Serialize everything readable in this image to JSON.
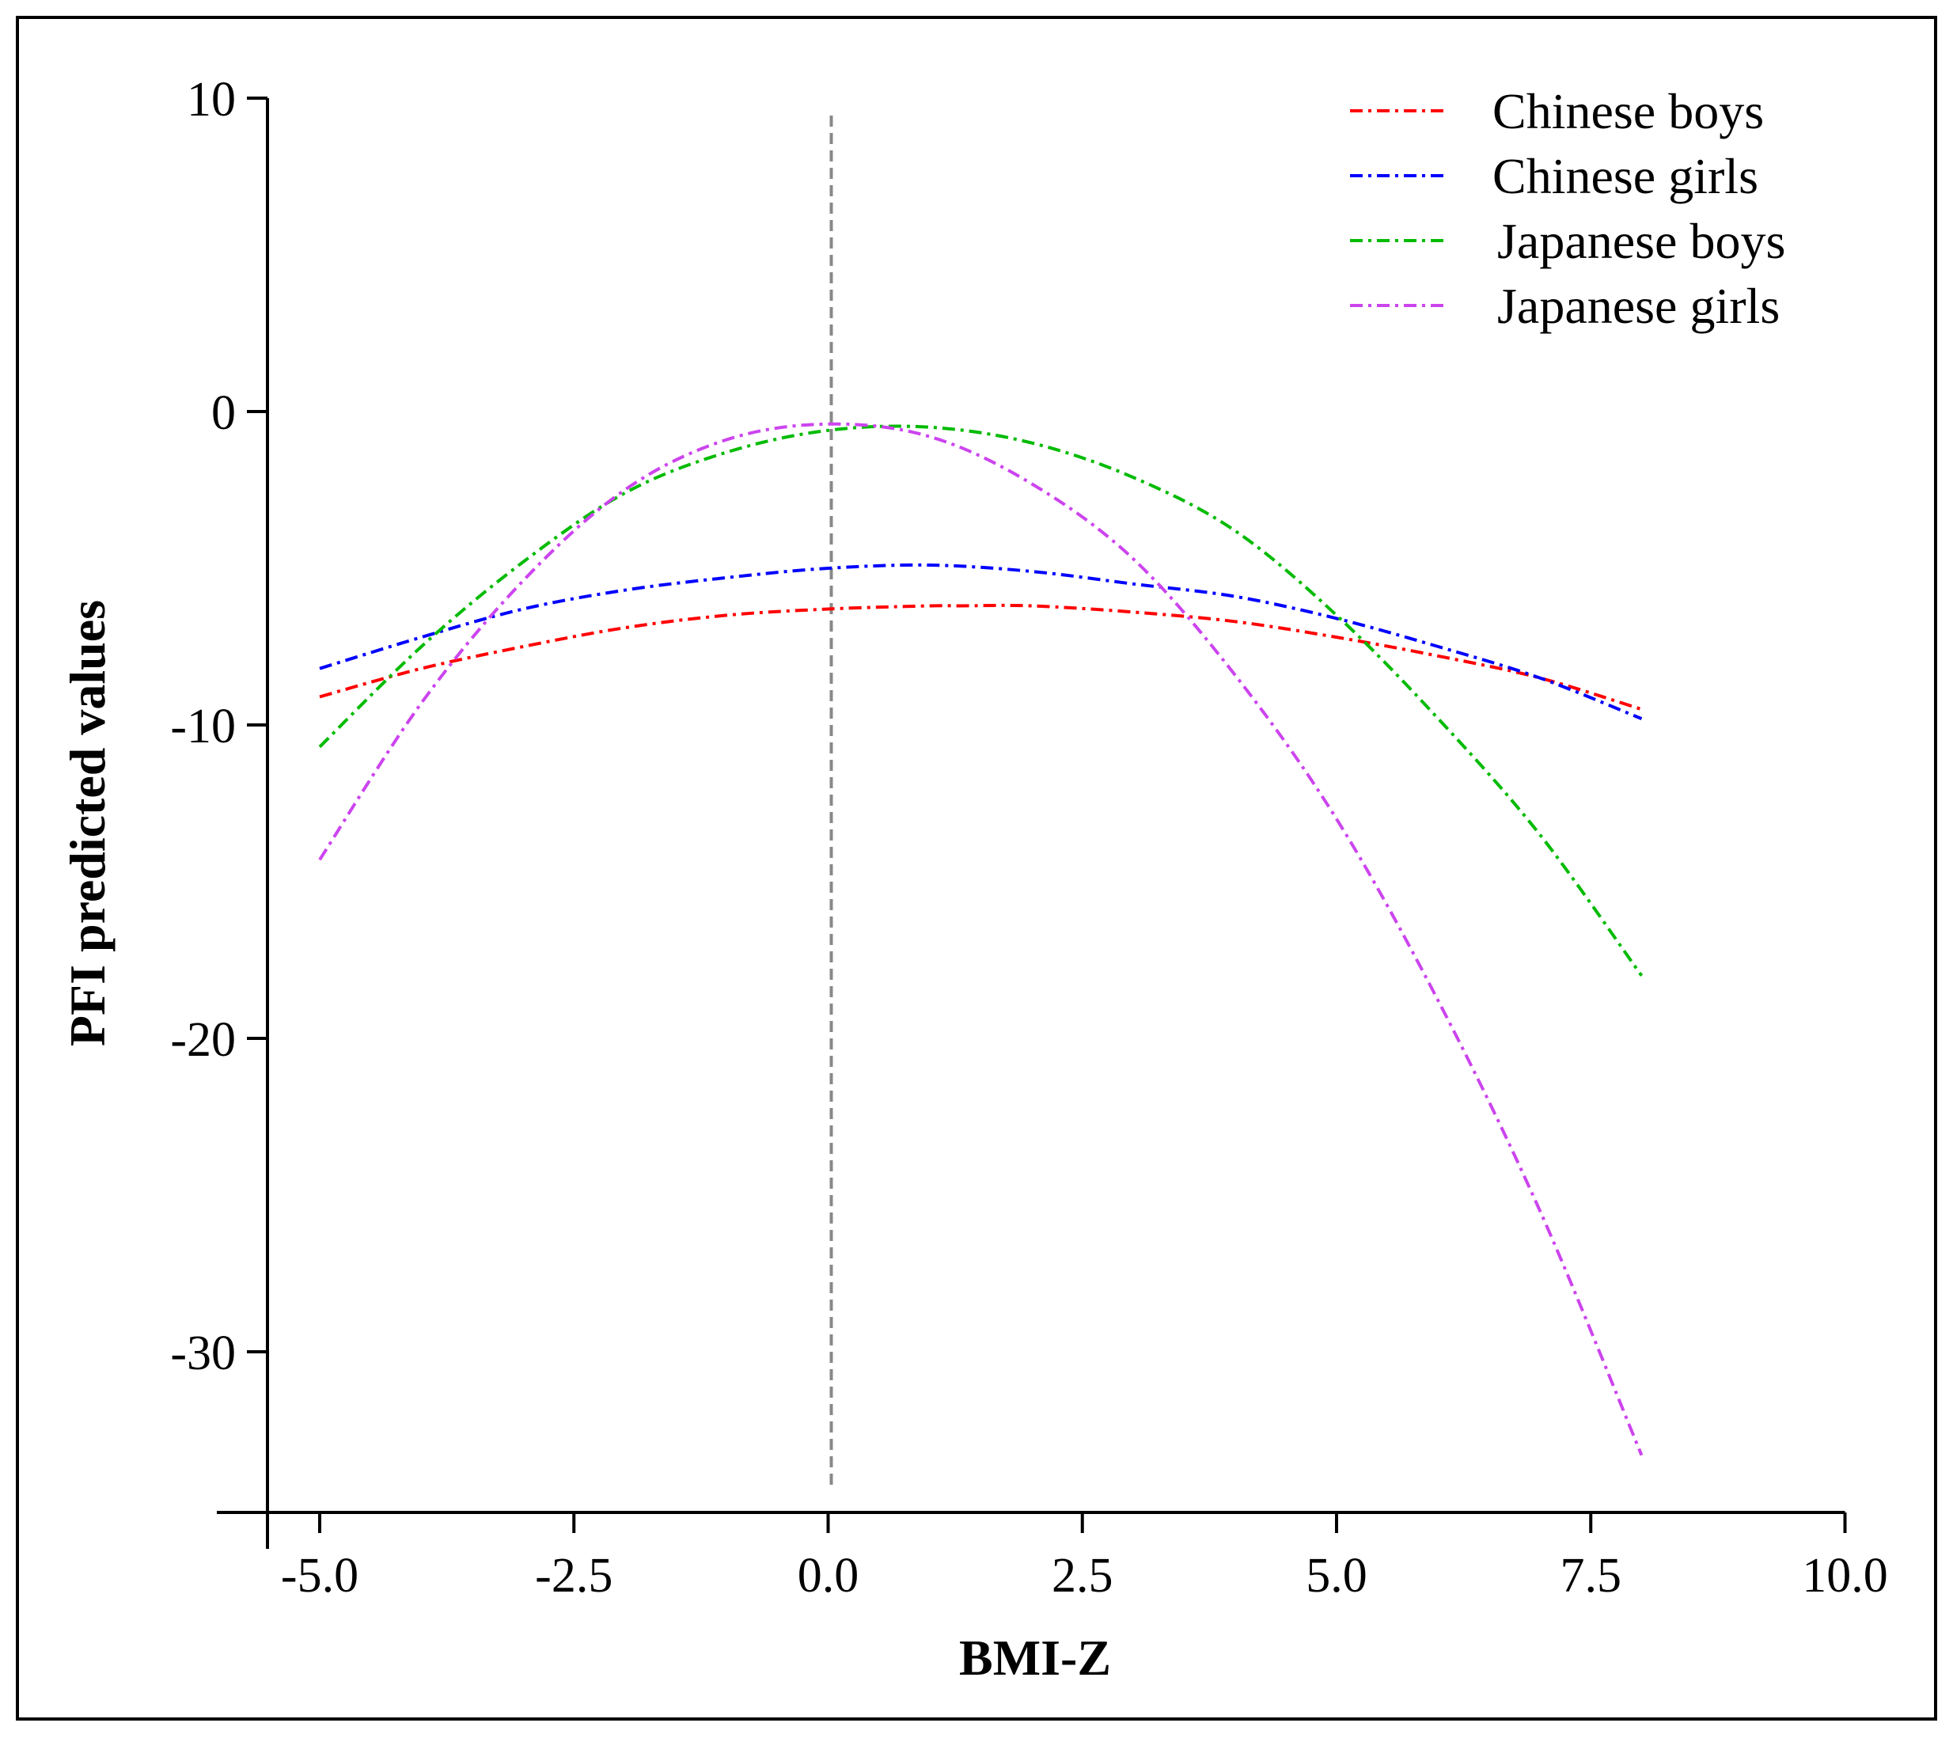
{
  "chart_data": {
    "type": "line",
    "title": "",
    "xlabel": "BMI-Z",
    "ylabel": "PFI predicted values",
    "xlim": [
      -5.5,
      10.0
    ],
    "ylim": [
      -35,
      10
    ],
    "x_ticks": [
      -5.0,
      -2.5,
      0.0,
      2.5,
      5.0,
      7.5,
      10.0
    ],
    "x_tick_labels": [
      "-5.0",
      "-2.5",
      "0.0",
      "2.5",
      "5.0",
      "7.5",
      "10.0"
    ],
    "y_ticks": [
      10,
      0,
      -10,
      -20,
      -30
    ],
    "y_tick_labels": [
      "10",
      "0",
      "-10",
      "-20",
      "-30"
    ],
    "grid": false,
    "legend_position": "top-right",
    "reference_line": {
      "x": 0.0,
      "style": "dashed",
      "color": "#888888"
    },
    "series": [
      {
        "name": "Chinese boys",
        "color": "#ff0000",
        "x": [
          -5.0,
          -4.0,
          -3.0,
          -2.0,
          -1.0,
          0.0,
          1.0,
          1.3,
          2.0,
          3.0,
          4.0,
          5.0,
          6.0,
          7.0,
          8.0
        ],
        "y": [
          -9.1,
          -8.2,
          -7.5,
          -6.9,
          -6.5,
          -6.3,
          -6.2,
          -6.2,
          -6.2,
          -6.4,
          -6.7,
          -7.2,
          -7.8,
          -8.5,
          -9.5
        ]
      },
      {
        "name": "Chinese girls",
        "color": "#0000ff",
        "x": [
          -5.0,
          -4.0,
          -3.0,
          -2.0,
          -1.0,
          0.0,
          1.0,
          2.0,
          3.0,
          4.0,
          5.0,
          6.0,
          7.0,
          8.0
        ],
        "y": [
          -8.2,
          -7.2,
          -6.3,
          -5.7,
          -5.3,
          -5.0,
          -4.9,
          -5.1,
          -5.5,
          -5.9,
          -6.6,
          -7.5,
          -8.5,
          -9.8
        ]
      },
      {
        "name": "Japanese boys",
        "color": "#00bb00",
        "x": [
          -5.0,
          -4.0,
          -3.0,
          -2.0,
          -1.0,
          0.0,
          1.0,
          2.0,
          3.0,
          4.0,
          5.0,
          6.0,
          7.0,
          8.0
        ],
        "y": [
          -10.7,
          -7.5,
          -4.8,
          -2.6,
          -1.3,
          -0.6,
          -0.5,
          -1.0,
          -2.1,
          -3.8,
          -6.5,
          -9.8,
          -13.5,
          -18.0
        ]
      },
      {
        "name": "Japanese girls",
        "color": "#cc44ee",
        "x": [
          -5.0,
          -4.0,
          -3.0,
          -2.0,
          -1.0,
          0.0,
          1.0,
          2.0,
          3.0,
          4.0,
          5.0,
          6.0,
          7.0,
          8.0
        ],
        "y": [
          -14.3,
          -9.3,
          -5.4,
          -2.5,
          -0.9,
          -0.4,
          -0.8,
          -2.3,
          -4.7,
          -8.4,
          -13.0,
          -18.8,
          -25.5,
          -33.3
        ]
      }
    ]
  }
}
